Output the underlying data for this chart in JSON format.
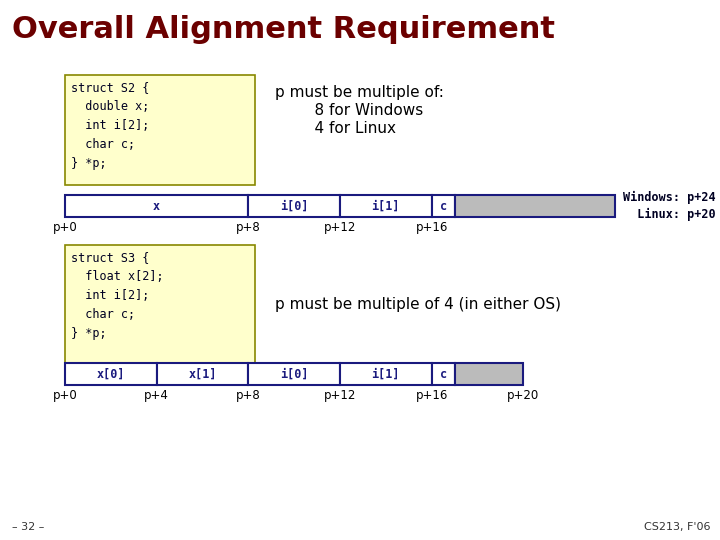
{
  "title": "Overall Alignment Requirement",
  "title_color": "#6B0000",
  "bg_color": "#FFFFFF",
  "code_box1": "struct S2 {\n  double x;\n  int i[2];\n  char c;\n} *p;",
  "code_box2": "struct S3 {\n  float x[2];\n  int i[2];\n  char c;\n} *p;",
  "code_bg": "#FFFFCC",
  "code_border": "#888800",
  "note1_line1": "p must be multiple of:",
  "note1_line2": "    8 for Windows",
  "note1_line3": "    4 for Linux",
  "note2": "p must be multiple of 4 (in either OS)",
  "bar_white": "#FFFFFF",
  "bar_gray": "#BBBBBB",
  "bar_border": "#1a1a7e",
  "bar_text_color": "#1a1a7e",
  "footer_left": "– 32 –",
  "footer_right": "CS213, F'06",
  "mono_font": "monospace",
  "sans_font": "sans-serif",
  "title_fontsize": 22,
  "code_fontsize": 8.5,
  "bar_label_fontsize": 8.5,
  "tick_fontsize": 8.5,
  "note_fontsize": 11,
  "win_linux_fontsize": 8.5,
  "footer_fontsize": 8
}
